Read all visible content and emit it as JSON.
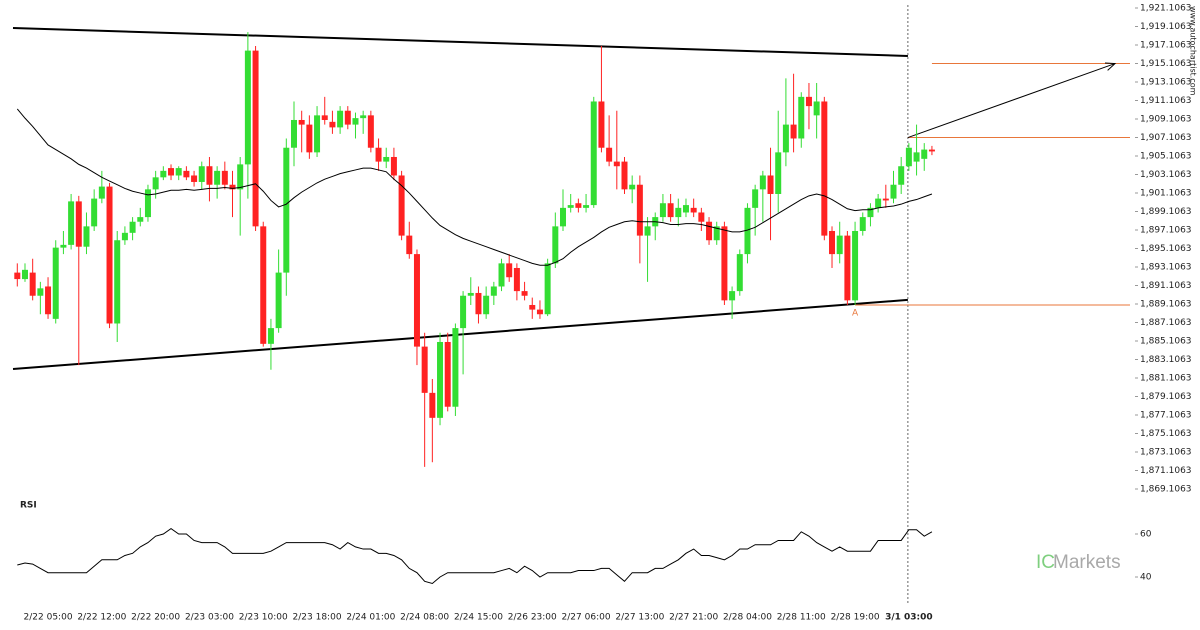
{
  "chart_data": {
    "type": "candlestick",
    "up_color": "#33dd33",
    "down_color": "#ff2222",
    "categories": [
      null,
      null,
      null,
      null,
      "2/22 05:00",
      null,
      null,
      null,
      null,
      null,
      null,
      "2/22 12:00",
      null,
      null,
      null,
      null,
      null,
      null,
      "2/22 20:00",
      null,
      null,
      null,
      null,
      null,
      null,
      "2/23 03:00",
      null,
      null,
      null,
      null,
      null,
      null,
      "2/23 10:00",
      null,
      null,
      null,
      null,
      null,
      null,
      "2/23 18:00",
      null,
      null,
      null,
      null,
      null,
      null,
      "2/24 01:00",
      null,
      null,
      null,
      null,
      null,
      null,
      "2/24 08:00",
      null,
      null,
      null,
      null,
      null,
      null,
      "2/24 15:00",
      null,
      null,
      null,
      null,
      null,
      null,
      "2/26 23:00",
      null,
      null,
      null,
      null,
      null,
      null,
      "2/27 06:00",
      null,
      null,
      null,
      null,
      null,
      null,
      "2/27 13:00",
      null,
      null,
      null,
      null,
      null,
      null,
      "2/27 21:00",
      null,
      null,
      null,
      null,
      null,
      null,
      "2/28 04:00",
      null,
      null,
      null,
      null,
      null,
      null,
      "2/28 11:00",
      null,
      null,
      null,
      null,
      null,
      null,
      "2/28 19:00",
      null,
      null,
      null,
      null,
      null,
      null,
      "3/1 03:00",
      null,
      null,
      null
    ],
    "open": [
      1892.5,
      1891.8,
      1892.5,
      1890,
      1891,
      1887.5,
      1895.2,
      1895.5,
      1900.2,
      1895.3,
      1897.5,
      1900.5,
      1901.8,
      1887,
      1896,
      1896.8,
      1898,
      1898.5,
      1901.5,
      1902.8,
      1903.8,
      1903,
      1903.5,
      1903,
      1902.3,
      1904,
      1902,
      1903.5,
      1902,
      1901.5,
      1904.2,
      1916.5,
      1897.5,
      1884.8,
      1886.5,
      1892.5,
      1906,
      1909,
      1908.5,
      1905.5,
      1909.5,
      1908.8,
      1908.2,
      1910,
      1908.5,
      1909.2,
      1909.5,
      1906,
      1904.5,
      1905,
      1903,
      1896.5,
      1894.5,
      1884.5,
      1879.5,
      1876.8,
      1885,
      1878,
      1886.5,
      1890,
      1890.3,
      1888,
      1890,
      1891,
      1893.5,
      1893,
      1890.5,
      1889,
      1888.5,
      1888,
      1893.5,
      1897.5,
      1899.5,
      1900,
      1899.5,
      1899.8,
      1911,
      1906,
      1904.5,
      1904.5,
      1901.5,
      1902,
      1896.5,
      1897.5,
      1898.5,
      1900,
      1898.5,
      1899,
      1899.5,
      1899,
      1898,
      1896,
      1897.5,
      1889.5,
      1890.5,
      1894.5,
      1899.5,
      1901.5,
      1903,
      1901,
      1905.5,
      1908.5,
      1907,
      1911.5,
      1909.5,
      1911,
      1897,
      1894.5,
      1896.5,
      1889.5,
      1897,
      1898.5,
      1899.5,
      1900.5,
      1900.5,
      1902,
      1904,
      1904.5,
      1904.8,
      1905.8
    ],
    "high": [
      1893.5,
      1893.5,
      1894,
      1891.5,
      1892,
      1896,
      1897,
      1901,
      1900.8,
      1899,
      1901.5,
      1903.5,
      1902.2,
      1897,
      1897.5,
      1898.5,
      1899.5,
      1902,
      1903.5,
      1904,
      1904.2,
      1904,
      1904,
      1903.5,
      1904.5,
      1905,
      1904,
      1904.5,
      1903.5,
      1905,
      1918.5,
      1917,
      1898,
      1887.5,
      1895,
      1907,
      1911,
      1910,
      1909.5,
      1910.5,
      1911.5,
      1910,
      1910.5,
      1910.5,
      1909.8,
      1910,
      1910,
      1907,
      1906,
      1906,
      1903.5,
      1898,
      1895,
      1886,
      1881,
      1886,
      1886,
      1887,
      1890.5,
      1892,
      1891,
      1891,
      1891.5,
      1894,
      1894.5,
      1893.5,
      1891.5,
      1889.8,
      1889.5,
      1894,
      1899,
      1901.5,
      1901,
      1900.5,
      1901,
      1911.5,
      1917,
      1909.5,
      1910,
      1905,
      1903,
      1903,
      1898.5,
      1899,
      1901,
      1901,
      1900.5,
      1900.5,
      1900.5,
      1899.5,
      1898.5,
      1898,
      1898,
      1891,
      1895,
      1900,
      1902,
      1903.5,
      1906,
      1910,
      1913.5,
      1914,
      1912,
      1913,
      1913,
      1911.5,
      1897.5,
      1898,
      1897,
      1898,
      1899,
      1900,
      1901,
      1902,
      1903.5,
      1905,
      1906.5,
      1908.5,
      1906.5,
      1906.2
    ],
    "low": [
      1891,
      1891.5,
      1889.5,
      1888,
      1887.5,
      1887,
      1894.5,
      1895,
      1882.5,
      1894.5,
      1897,
      1900,
      1886.5,
      1885,
      1895.5,
      1896,
      1897.5,
      1898,
      1900.5,
      1902.5,
      1902.5,
      1902.5,
      1902.5,
      1901.8,
      1901.5,
      1900.2,
      1900.5,
      1901.5,
      1898.5,
      1896.5,
      1900.5,
      1897,
      1884.5,
      1882,
      1886,
      1890,
      1904,
      1905.5,
      1904.8,
      1905,
      1908.5,
      1907.5,
      1907.5,
      1908,
      1907,
      1907.5,
      1905.5,
      1903.5,
      1903.8,
      1902.5,
      1896,
      1894,
      1882.5,
      1871.5,
      1872,
      1876,
      1877.5,
      1877,
      1881.5,
      1889,
      1887,
      1887.5,
      1889,
      1890.5,
      1891.5,
      1889.5,
      1889.5,
      1887.5,
      1887.5,
      1887.8,
      1893,
      1897,
      1899,
      1899,
      1899,
      1899.5,
      1905.5,
      1904,
      1901.5,
      1901,
      1900,
      1893.5,
      1891.5,
      1896,
      1898,
      1898,
      1897.5,
      1898.5,
      1898.5,
      1897,
      1895.5,
      1895.5,
      1889,
      1887.5,
      1890,
      1893.5,
      1896.5,
      1898,
      1896,
      1899,
      1904,
      1905.5,
      1906,
      1908,
      1907,
      1896,
      1893,
      1893.5,
      1889,
      1889,
      1896.5,
      1897.5,
      1899,
      1899.5,
      1900,
      1901,
      1903.5,
      1903,
      1903.5,
      1905.2
    ],
    "close": [
      1891.8,
      1892.8,
      1890,
      1890.8,
      1888,
      1895.2,
      1895.5,
      1900.2,
      1895.3,
      1897.5,
      1900.5,
      1901.8,
      1887,
      1896,
      1896.8,
      1898,
      1898.5,
      1901.5,
      1902.8,
      1903.5,
      1903,
      1903.8,
      1902.8,
      1902.3,
      1904,
      1902,
      1903.5,
      1902,
      1901.5,
      1904.2,
      1916.5,
      1897.5,
      1884.8,
      1886.5,
      1892.5,
      1906,
      1909,
      1908.5,
      1905.5,
      1909.5,
      1909,
      1908.2,
      1910,
      1908.5,
      1909.2,
      1909.5,
      1906,
      1904.5,
      1905,
      1903,
      1896.5,
      1894.5,
      1884.5,
      1879.5,
      1876.8,
      1885,
      1878,
      1886.5,
      1890,
      1890.3,
      1888,
      1890,
      1891,
      1893.5,
      1892,
      1890.5,
      1890,
      1888.5,
      1888,
      1893.5,
      1897.5,
      1899.5,
      1899.8,
      1899.5,
      1899.8,
      1911,
      1906,
      1904.5,
      1904,
      1901.5,
      1902,
      1896.5,
      1897.5,
      1898.5,
      1900,
      1898.5,
      1899.5,
      1899.8,
      1899,
      1898,
      1896,
      1897.5,
      1889.5,
      1890.5,
      1894.5,
      1899.5,
      1901.5,
      1903,
      1901,
      1905.5,
      1908.5,
      1907,
      1911.5,
      1910.5,
      1911,
      1896.5,
      1894.5,
      1896.5,
      1889.5,
      1897,
      1898.5,
      1899.5,
      1900.5,
      1900.3,
      1902,
      1904,
      1906,
      1905.5,
      1905.8,
      1905.6
    ],
    "moving_average": {
      "color": "#000000",
      "values": [
        1910.2,
        1909.2,
        1908.3,
        1907.3,
        1906.3,
        1905.8,
        1905.3,
        1904.8,
        1904.2,
        1903.8,
        1903.3,
        1902.8,
        1902.4,
        1902.0,
        1901.6,
        1901.3,
        1901.1,
        1900.9,
        1901.0,
        1901.2,
        1901.4,
        1901.4,
        1901.5,
        1901.4,
        1901.5,
        1901.6,
        1901.6,
        1901.7,
        1901.6,
        1901.7,
        1901.9,
        1902.1,
        1901.3,
        1900.3,
        1899.6,
        1899.9,
        1900.6,
        1901.2,
        1901.7,
        1902.2,
        1902.6,
        1902.9,
        1903.2,
        1903.4,
        1903.6,
        1903.8,
        1903.8,
        1903.6,
        1903.4,
        1902.6,
        1901.9,
        1901.1,
        1900.2,
        1899.3,
        1898.4,
        1897.6,
        1897.1,
        1896.6,
        1896.2,
        1895.9,
        1895.6,
        1895.3,
        1895.0,
        1894.7,
        1894.4,
        1894.1,
        1893.8,
        1893.5,
        1893.3,
        1893.3,
        1893.6,
        1894.0,
        1894.7,
        1895.3,
        1895.8,
        1896.3,
        1896.9,
        1897.4,
        1897.7,
        1898.0,
        1898.1,
        1898.0,
        1898.0,
        1898.0,
        1897.9,
        1897.7,
        1897.7,
        1897.8,
        1897.8,
        1897.7,
        1897.5,
        1897.3,
        1897.1,
        1896.9,
        1896.9,
        1897.1,
        1897.4,
        1897.9,
        1898.4,
        1898.9,
        1899.4,
        1899.9,
        1900.4,
        1900.8,
        1901.0,
        1900.8,
        1900.4,
        1899.9,
        1899.4,
        1899.2,
        1899.3,
        1899.3,
        1899.5,
        1899.6,
        1899.7,
        1899.9,
        1900.2,
        1900.4,
        1900.7,
        1901.0
      ]
    },
    "ylim": [
      1869.1063,
      1921.1063
    ],
    "yticks": [
      {
        "value": 1869.1063,
        "label": "1,869.1063"
      },
      {
        "value": 1871.1063,
        "label": "1,871.1063"
      },
      {
        "value": 1873.1063,
        "label": "1,873.1063"
      },
      {
        "value": 1875.1063,
        "label": "1,875.1063"
      },
      {
        "value": 1877.1063,
        "label": "1,877.1063"
      },
      {
        "value": 1879.1063,
        "label": "1,879.1063"
      },
      {
        "value": 1881.1063,
        "label": "1,881.1063"
      },
      {
        "value": 1883.1063,
        "label": "1,883.1063"
      },
      {
        "value": 1885.1063,
        "label": "1,885.1063"
      },
      {
        "value": 1887.1063,
        "label": "1,887.1063"
      },
      {
        "value": 1889.1063,
        "label": "1,889.1063"
      },
      {
        "value": 1891.1063,
        "label": "1,891.1063"
      },
      {
        "value": 1893.1063,
        "label": "1,893.1063"
      },
      {
        "value": 1895.1063,
        "label": "1,895.1063"
      },
      {
        "value": 1897.1063,
        "label": "1,897.1063"
      },
      {
        "value": 1899.1063,
        "label": "1,899.1063"
      },
      {
        "value": 1901.1063,
        "label": "1,901.1063"
      },
      {
        "value": 1903.1063,
        "label": "1,903.1063"
      },
      {
        "value": 1905.1063,
        "label": "1,905.1063"
      },
      {
        "value": 1907.1063,
        "label": "1,907.1063"
      },
      {
        "value": 1909.1063,
        "label": "1,909.1063"
      },
      {
        "value": 1911.1063,
        "label": "1,911.1063"
      },
      {
        "value": 1913.1063,
        "label": "1,913.1063"
      },
      {
        "value": 1915.1063,
        "label": "1,915.1063"
      },
      {
        "value": 1917.1063,
        "label": "1,917.1063"
      },
      {
        "value": 1919.1063,
        "label": "1,919.1063"
      },
      {
        "value": 1921.1063,
        "label": "1,921.1063"
      }
    ],
    "trendlines": [
      {
        "start": 1918.94,
        "end": 1915.92
      },
      {
        "start": 1882.08,
        "end": 1889.55
      }
    ],
    "levels": [
      1907.1,
      1915.1,
      1889.0
    ],
    "level_color": "#e8763a",
    "projection": {
      "start": 1907.1,
      "end": 1915.1
    },
    "pattern_label": "A",
    "rsi": {
      "title": "RSI",
      "color": "#000000",
      "ylim": [
        30,
        70
      ],
      "yticks": [
        40,
        60
      ],
      "values": [
        45.6,
        46.5,
        46,
        44,
        42,
        42,
        42,
        42,
        42,
        42,
        45,
        48,
        48,
        48,
        50,
        51,
        54,
        56,
        59,
        60,
        62.5,
        60,
        60,
        57,
        56,
        56,
        56,
        54,
        51,
        51,
        51,
        51,
        51,
        52,
        54,
        56,
        56,
        56,
        56,
        56,
        56,
        55,
        53,
        56,
        54,
        53,
        53,
        51,
        51,
        50,
        48,
        44,
        42,
        38,
        37,
        40,
        42,
        42,
        42,
        42,
        42,
        42,
        42,
        43,
        44,
        42,
        45,
        43,
        40,
        42,
        42,
        42,
        42,
        43,
        43,
        43,
        44,
        44,
        41,
        38,
        42,
        42,
        42,
        44,
        44,
        46,
        48,
        51,
        53,
        50,
        50,
        49,
        48,
        50,
        53,
        53,
        55,
        55,
        55,
        57,
        57,
        57,
        61,
        59,
        56,
        54,
        52,
        54,
        52,
        52,
        52,
        52,
        57,
        57,
        57,
        57,
        62,
        62,
        59,
        61
      ]
    },
    "watermark": [
      "IC",
      "Markets"
    ],
    "source": "www.autochartist.com"
  }
}
